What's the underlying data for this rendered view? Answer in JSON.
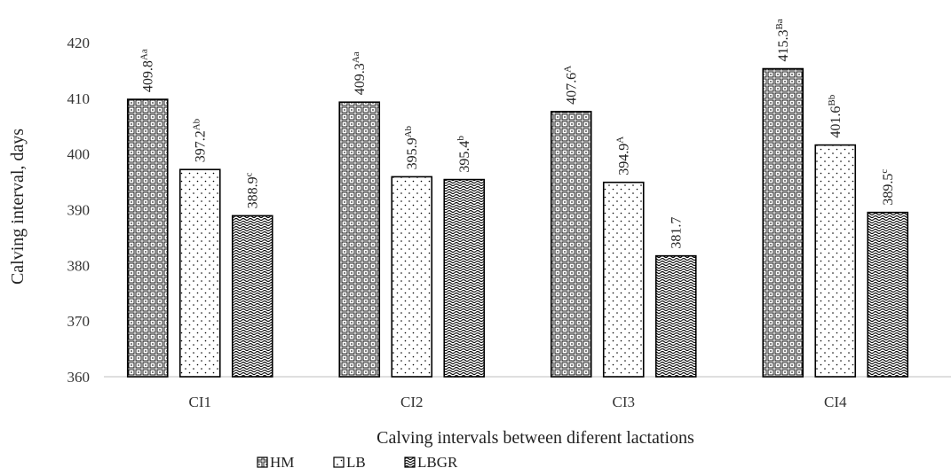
{
  "chart_data": {
    "type": "bar",
    "xlabel": "Calving intervals between diferent lactations",
    "ylabel": "Calving interval, days",
    "ylim": [
      360,
      420
    ],
    "yticks": [
      "360",
      "370",
      "380",
      "390",
      "400",
      "410",
      "420"
    ],
    "grid": false,
    "legend_position": "bottom",
    "categories": [
      "CI1",
      "CI2",
      "CI3",
      "CI4"
    ],
    "series": [
      {
        "name": "HM",
        "pattern": "grid",
        "values": [
          409.8,
          409.3,
          407.6,
          415.3
        ],
        "labels": [
          {
            "value": "409.8",
            "sup": "Aa"
          },
          {
            "value": "409.3",
            "sup": "Aa"
          },
          {
            "value": "407.6",
            "sup": "A"
          },
          {
            "value": "415.3",
            "sup": "Ba"
          }
        ]
      },
      {
        "name": "LB",
        "pattern": "dots",
        "values": [
          397.2,
          395.9,
          394.9,
          401.6
        ],
        "labels": [
          {
            "value": "397.2",
            "sup": "Ab"
          },
          {
            "value": "395.9",
            "sup": "Ab"
          },
          {
            "value": "394.9",
            "sup": "A"
          },
          {
            "value": "401.6",
            "sup": "Bb"
          }
        ]
      },
      {
        "name": "LBGR",
        "pattern": "waves",
        "values": [
          388.9,
          395.4,
          381.7,
          389.5
        ],
        "labels": [
          {
            "value": "388.9",
            "sup": "c"
          },
          {
            "value": "395.4",
            "sup": "b"
          },
          {
            "value": "381.7",
            "sup": ""
          },
          {
            "value": "389.5",
            "sup": "c"
          }
        ]
      }
    ],
    "colors": {
      "bar_stroke": "#000000",
      "axis": "#bfbfbf",
      "text": "#222222"
    }
  }
}
